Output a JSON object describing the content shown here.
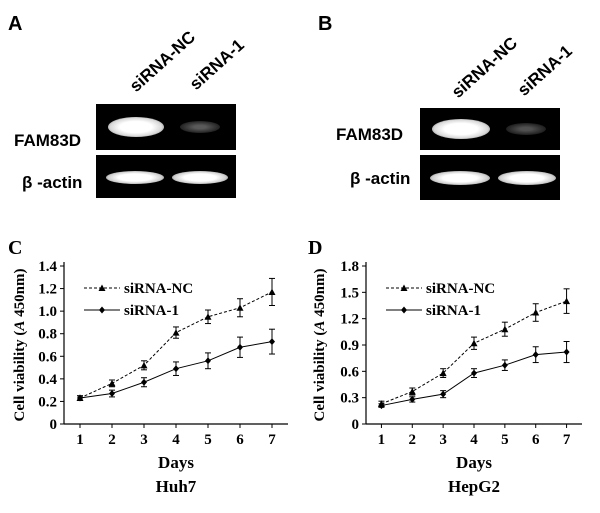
{
  "panel_a": {
    "letter": "A",
    "lanes": [
      "siRNA-NC",
      "siRNA-1"
    ],
    "rows": [
      "FAM83D",
      "β -actin"
    ]
  },
  "panel_b": {
    "letter": "B",
    "lanes": [
      "siRNA-NC",
      "siRNA-1"
    ],
    "rows": [
      "FAM83D",
      "β -actin"
    ]
  },
  "chart_data": [
    {
      "letter": "C",
      "type": "line",
      "title": "Huh7",
      "xlabel": "Days",
      "ylabel": "Cell viability (A 450nm)",
      "ylabel_parts": {
        "prefix": "Cell viability (",
        "italic": "A",
        "suffix": " 450nm)"
      },
      "x": [
        1,
        2,
        3,
        4,
        5,
        6,
        7
      ],
      "xlim": [
        0.5,
        7.5
      ],
      "ylim": [
        0,
        1.4
      ],
      "yticks": [
        "0",
        "0.2",
        "0.4",
        "0.6",
        "0.8",
        "1.0",
        "1.2",
        "1.4"
      ],
      "ytick_values": [
        0,
        0.2,
        0.4,
        0.6,
        0.8,
        1.0,
        1.2,
        1.4
      ],
      "legend_position": "top-left",
      "series": [
        {
          "name": "siRNA-NC",
          "marker": "triangle",
          "dash": true,
          "values": [
            0.23,
            0.36,
            0.52,
            0.81,
            0.95,
            1.03,
            1.17
          ],
          "errors": [
            0.02,
            0.03,
            0.04,
            0.05,
            0.06,
            0.08,
            0.12
          ]
        },
        {
          "name": "siRNA-1",
          "marker": "diamond",
          "dash": false,
          "values": [
            0.23,
            0.27,
            0.37,
            0.49,
            0.56,
            0.68,
            0.73
          ],
          "errors": [
            0.02,
            0.03,
            0.04,
            0.06,
            0.07,
            0.09,
            0.11
          ]
        }
      ]
    },
    {
      "letter": "D",
      "type": "line",
      "title": "HepG2",
      "xlabel": "Days",
      "ylabel": "Cell viability (A 450nm)",
      "ylabel_parts": {
        "prefix": "Cell viability (",
        "italic": "A",
        "suffix": " 450nm)"
      },
      "x": [
        1,
        2,
        3,
        4,
        5,
        6,
        7
      ],
      "xlim": [
        0.5,
        7.5
      ],
      "ylim": [
        0,
        1.8
      ],
      "yticks": [
        "0",
        "0.3",
        "0.6",
        "0.9",
        "1.2",
        "1.5",
        "1.8"
      ],
      "ytick_values": [
        0,
        0.3,
        0.6,
        0.9,
        1.2,
        1.5,
        1.8
      ],
      "legend_position": "top-left",
      "series": [
        {
          "name": "siRNA-NC",
          "marker": "triangle",
          "dash": true,
          "values": [
            0.23,
            0.37,
            0.58,
            0.92,
            1.08,
            1.27,
            1.4
          ],
          "errors": [
            0.03,
            0.04,
            0.05,
            0.07,
            0.08,
            0.1,
            0.14
          ]
        },
        {
          "name": "siRNA-1",
          "marker": "diamond",
          "dash": false,
          "values": [
            0.21,
            0.28,
            0.34,
            0.58,
            0.67,
            0.79,
            0.82
          ],
          "errors": [
            0.02,
            0.03,
            0.04,
            0.05,
            0.06,
            0.09,
            0.12
          ]
        }
      ]
    }
  ]
}
